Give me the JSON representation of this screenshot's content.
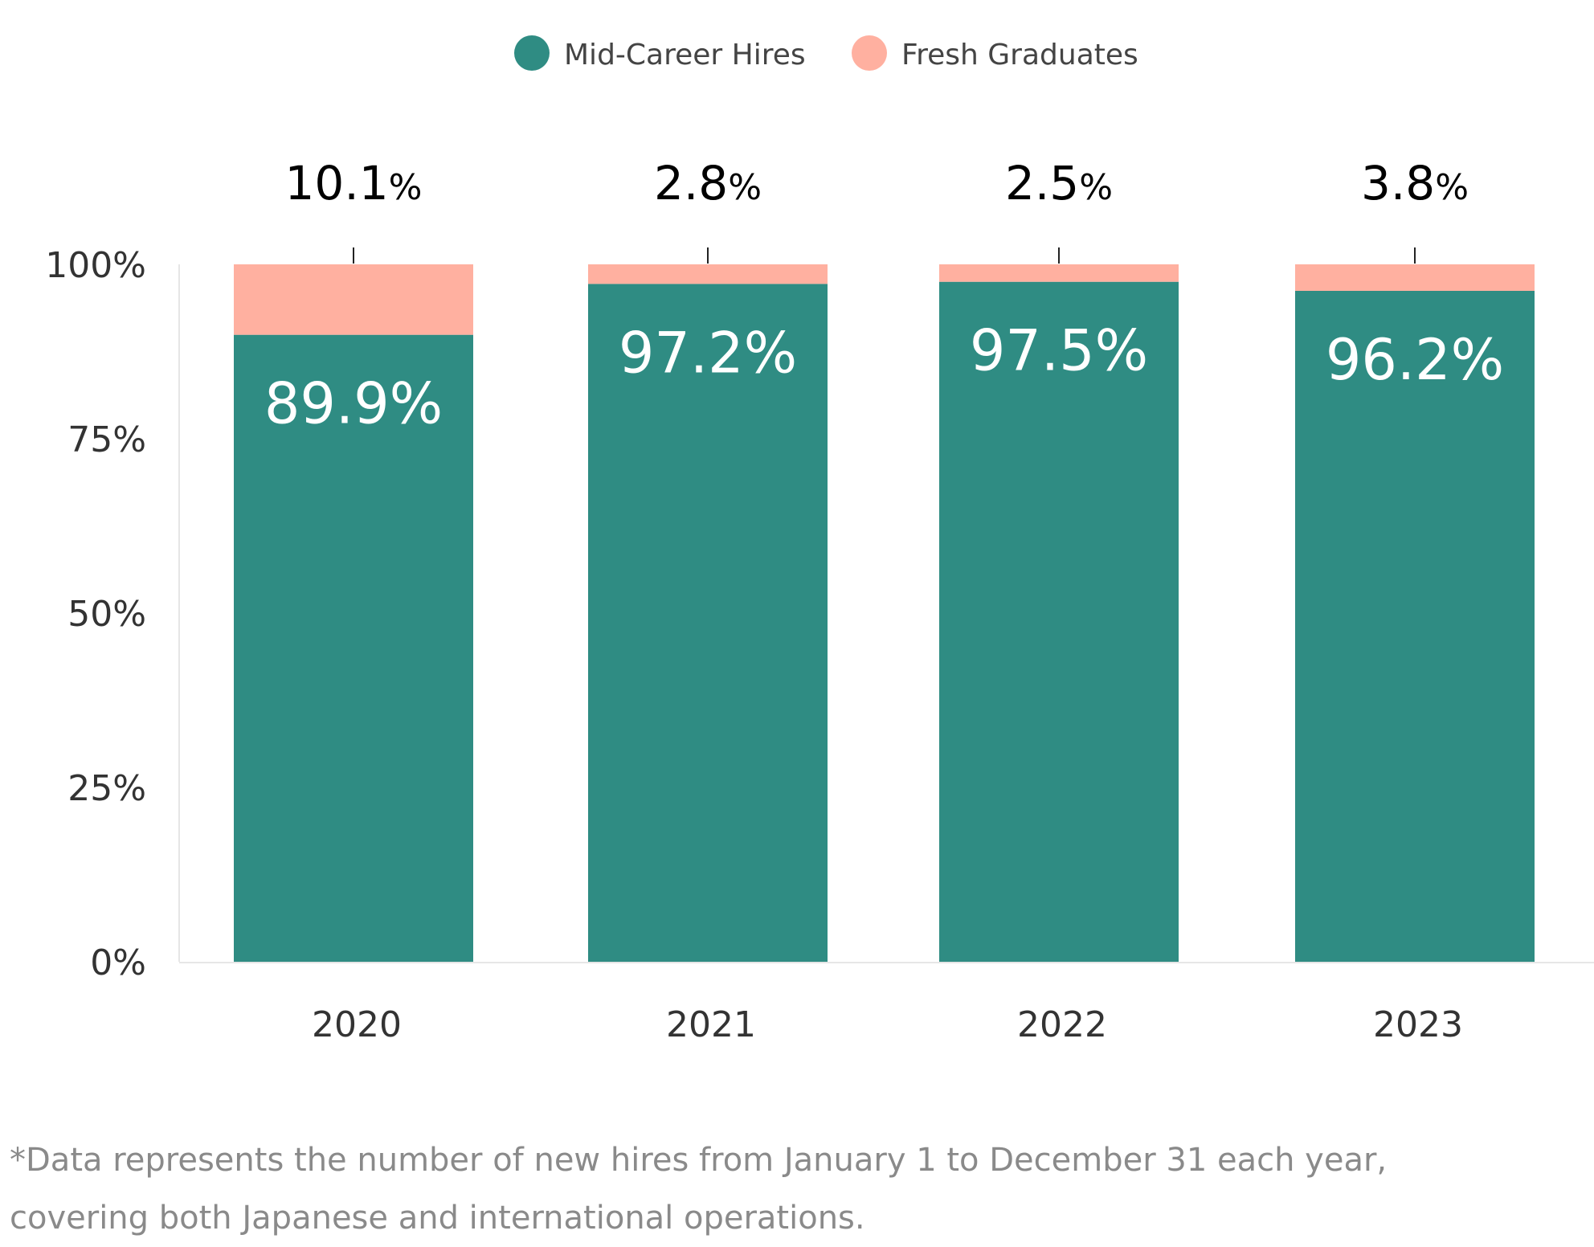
{
  "legend": [
    {
      "name": "Mid-Career Hires",
      "color": "#2f8c83"
    },
    {
      "name": "Fresh Graduates",
      "color": "#ffb0a0"
    }
  ],
  "chart_data": {
    "type": "bar",
    "stacked": true,
    "categories": [
      "2020",
      "2021",
      "2022",
      "2023"
    ],
    "series": [
      {
        "name": "Mid-Career Hires",
        "values": [
          89.9,
          97.2,
          97.5,
          96.2
        ],
        "labels": [
          "89.9%",
          "97.2%",
          "97.5%",
          "96.2%"
        ],
        "color": "#2f8c83"
      },
      {
        "name": "Fresh Graduates",
        "values": [
          10.1,
          2.8,
          2.5,
          3.8
        ],
        "labels_num": [
          "10.1",
          "2.8",
          "2.5",
          "3.8"
        ],
        "labels_unit": "%",
        "color": "#ffb0a0"
      }
    ],
    "ylim": [
      0,
      100
    ],
    "yticks": [
      {
        "value": 0,
        "label": "0%"
      },
      {
        "value": 25,
        "label": "25%"
      },
      {
        "value": 50,
        "label": "50%"
      },
      {
        "value": 75,
        "label": "75%"
      },
      {
        "value": 100,
        "label": "100%"
      }
    ],
    "legend_position": "top-center",
    "grid": false
  },
  "footnote": {
    "line1": "*Data represents the number of new hires from January 1 to December 31 each year,",
    "line2": "covering both Japanese and international operations."
  }
}
